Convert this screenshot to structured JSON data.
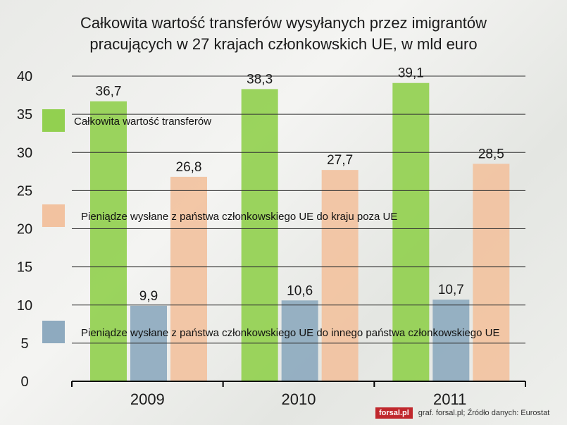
{
  "title_line1": "Całkowita wartość transferów wysyłanych przez imigrantów",
  "title_line2": "pracujących w 27 krajach członkowskich UE, w mld euro",
  "footer": {
    "logo": "forsal.pl",
    "source": "graf. forsal.pl; Źródło danych: Eurostat"
  },
  "colors": {
    "total": "#92d050",
    "outside_eu": "#f2c2a0",
    "inside_eu": "#8eaabf",
    "grid": "#333333",
    "logo": "#c0282d"
  },
  "chart_data": {
    "type": "bar",
    "title": "Całkowita wartość transferów wysyłanych przez imigrantów pracujących w 27 krajach członkowskich UE, w mld euro",
    "categories": [
      "2009",
      "2010",
      "2011"
    ],
    "ylim": [
      0,
      40
    ],
    "yticks": [
      0,
      5,
      10,
      15,
      20,
      25,
      30,
      35,
      40
    ],
    "grid": true,
    "legend_position": "inside-left",
    "series": [
      {
        "name": "Całkowita wartość transferów",
        "values": [
          36.7,
          38.3,
          39.1
        ],
        "labels": [
          "36,7",
          "38,3",
          "39,1"
        ],
        "color": "#92d050"
      },
      {
        "name": "Pieniądze wysłane z państwa członkowskiego UE do innego państwa członkowskiego UE",
        "values": [
          9.9,
          10.6,
          10.7
        ],
        "labels": [
          "9,9",
          "10,6",
          "10,7"
        ],
        "color": "#8eaabf"
      },
      {
        "name": "Pieniądze wysłane z państwa członkowskiego UE do kraju poza UE",
        "values": [
          26.8,
          27.7,
          28.5
        ],
        "labels": [
          "26,8",
          "27,7",
          "28,5"
        ],
        "color": "#f2c2a0"
      }
    ]
  }
}
